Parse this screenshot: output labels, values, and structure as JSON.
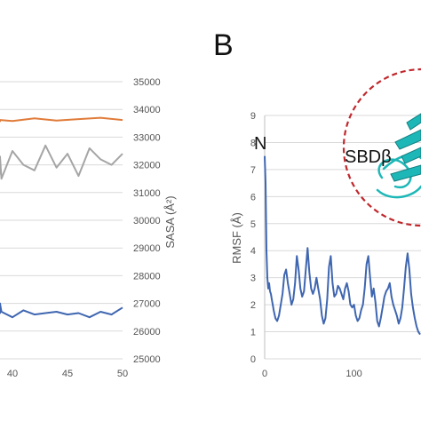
{
  "panel_label": "B",
  "colors": {
    "orange": "#E07B39",
    "gray": "#A5A5A5",
    "blue": "#3F66B0",
    "grid": "#D9D9D9",
    "dash_circle": "#C0282D",
    "protein": "#1DB7B7"
  },
  "chart_data": [
    {
      "type": "line",
      "xlim": [
        30,
        50
      ],
      "x_ticks": [
        "40",
        "45",
        "50"
      ],
      "ylabel_right": "SASA (Å²)",
      "ylim_right": [
        25000,
        35000
      ],
      "right_ticks": [
        "25000",
        "26000",
        "27000",
        "28000",
        "29000",
        "30000",
        "31000",
        "32000",
        "33000",
        "34000",
        "35000"
      ],
      "grid": "horizontal",
      "series": [
        {
          "color": "#E07B39",
          "x": [
            36,
            38,
            40,
            42,
            44,
            46,
            48,
            50
          ],
          "y": [
            33550,
            33620,
            33580,
            33680,
            33600,
            33650,
            33700,
            33620
          ]
        },
        {
          "color": "#A5A5A5",
          "x": [
            36,
            37,
            38,
            39,
            40,
            41,
            42,
            43,
            44,
            45,
            46,
            47,
            48,
            49,
            50
          ],
          "y": [
            31650,
            32000,
            32300,
            31500,
            32500,
            32000,
            31800,
            32700,
            31900,
            32400,
            31600,
            32600,
            32200,
            32000,
            32400
          ]
        },
        {
          "color": "#3F66B0",
          "x": [
            36,
            37,
            38,
            39,
            40,
            41,
            42,
            43,
            44,
            45,
            46,
            47,
            48,
            49,
            50
          ],
          "y": [
            26700,
            26650,
            27000,
            26700,
            26500,
            26750,
            26600,
            26650,
            26700,
            26600,
            26650,
            26500,
            26700,
            26600,
            26850
          ]
        }
      ]
    },
    {
      "type": "line",
      "ylabel": "RMSF (Å)",
      "ylim": [
        0,
        9
      ],
      "y_ticks": [
        "0",
        "1",
        "2",
        "3",
        "4",
        "5",
        "6",
        "7",
        "8",
        "9"
      ],
      "x_ticks": [
        "0",
        "100"
      ],
      "xlim": [
        0,
        175
      ],
      "grid": "horizontal",
      "annotations": [
        "N",
        "SBDβ"
      ],
      "series": [
        {
          "color": "#3F66B0",
          "x": [
            0,
            1,
            2,
            3,
            4,
            5,
            6,
            7,
            8,
            9,
            10,
            12,
            14,
            16,
            18,
            20,
            22,
            24,
            26,
            28,
            30,
            32,
            34,
            36,
            38,
            40,
            42,
            44,
            46,
            48,
            50,
            52,
            54,
            56,
            58,
            60,
            62,
            64,
            66,
            68,
            70,
            72,
            74,
            76,
            78,
            80,
            82,
            84,
            86,
            88,
            90,
            92,
            94,
            96,
            98,
            100,
            102,
            104,
            106,
            108,
            110,
            112,
            114,
            116,
            118,
            120,
            122,
            124,
            126,
            128,
            130,
            132,
            134,
            136,
            138,
            140,
            142,
            144,
            146,
            148,
            150,
            152,
            154,
            156,
            158,
            160,
            162,
            164,
            166,
            168,
            170,
            172,
            174
          ],
          "y": [
            7.5,
            6.5,
            4.0,
            3.0,
            2.6,
            2.8,
            2.5,
            2.4,
            2.2,
            2.0,
            1.8,
            1.5,
            1.4,
            1.6,
            2.0,
            2.4,
            3.1,
            3.3,
            2.8,
            2.4,
            2.0,
            2.2,
            2.8,
            3.8,
            3.3,
            2.6,
            2.3,
            2.5,
            3.3,
            4.1,
            3.2,
            2.6,
            2.4,
            2.6,
            3.0,
            2.6,
            2.2,
            1.6,
            1.3,
            1.5,
            2.2,
            3.4,
            3.8,
            2.8,
            2.3,
            2.4,
            2.7,
            2.6,
            2.4,
            2.2,
            2.6,
            2.8,
            2.5,
            2.0,
            1.9,
            2.0,
            1.6,
            1.4,
            1.5,
            1.8,
            2.0,
            2.6,
            3.5,
            3.8,
            3.0,
            2.3,
            2.6,
            2.1,
            1.4,
            1.2,
            1.5,
            1.9,
            2.3,
            2.5,
            2.6,
            2.8,
            2.3,
            2.0,
            1.8,
            1.6,
            1.3,
            1.5,
            1.9,
            2.6,
            3.4,
            3.9,
            3.3,
            2.4,
            1.9,
            1.5,
            1.2,
            1.0,
            0.9
          ]
        }
      ]
    }
  ]
}
